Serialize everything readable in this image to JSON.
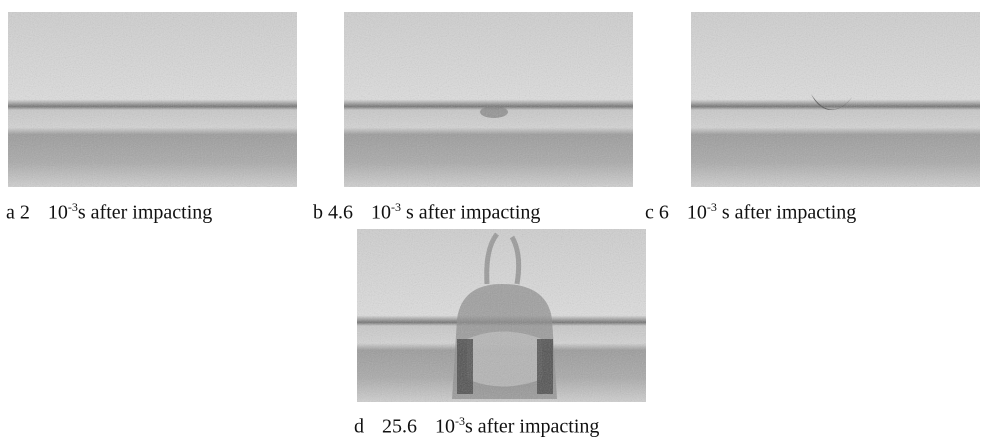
{
  "panels": [
    {
      "label": "a",
      "value": "2",
      "base": "10",
      "exponent": "-3",
      "unit": "s after impacting"
    },
    {
      "label": "b",
      "value": "4.6",
      "base": "10",
      "exponent": "-3",
      "unit": "s after impacting"
    },
    {
      "label": "c",
      "value": "6",
      "base": "10",
      "exponent": "-3",
      "unit": "s after impacting"
    },
    {
      "label": "d",
      "value": "25.6",
      "base": "10",
      "exponent": "-3",
      "unit": "s after impacting"
    }
  ]
}
